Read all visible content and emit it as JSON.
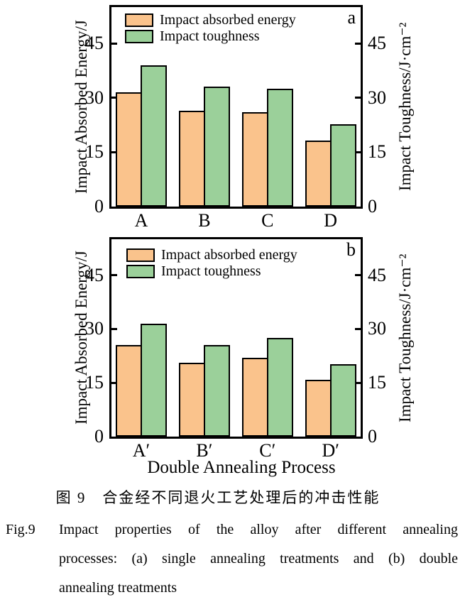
{
  "figure": {
    "caption_zh": "图 9　合金经不同退火工艺处理后的冲击性能",
    "caption_en": {
      "label": "Fig.9",
      "lines": [
        "Impact properties of the alloy after different annealing",
        "processes: (a) single annealing treatments and (b) double",
        "annealing treatments"
      ]
    }
  },
  "chart_data": [
    {
      "type": "bar",
      "panel_label": "a",
      "categories": [
        "A",
        "B",
        "C",
        "D"
      ],
      "series": [
        {
          "name": "Impact absorbed energy",
          "color": "#FAC38C",
          "values": [
            31.5,
            26.5,
            26.0,
            18.2
          ]
        },
        {
          "name": "Impact toughness",
          "color": "#9BD09A",
          "values": [
            39.0,
            33.0,
            32.5,
            22.8
          ]
        }
      ],
      "ylabel_left": "Impact Absorbed Energy/J",
      "ylabel_right": "Impact Toughness/J·cm⁻²",
      "xlabel": "",
      "yticks": [
        0,
        15,
        30,
        45
      ],
      "ylim": [
        0,
        55
      ],
      "grid": false,
      "legend_position": "upper-left",
      "bar_border_color": "#000000"
    },
    {
      "type": "bar",
      "panel_label": "b",
      "categories": [
        "A′",
        "B′",
        "C′",
        "D′"
      ],
      "series": [
        {
          "name": "Impact absorbed energy",
          "color": "#FAC38C",
          "values": [
            25.5,
            20.5,
            22.0,
            15.8
          ]
        },
        {
          "name": "Impact toughness",
          "color": "#9BD09A",
          "values": [
            31.5,
            25.5,
            27.5,
            20.2
          ]
        }
      ],
      "ylabel_left": "Impact Absorbed Energy/J",
      "ylabel_right": "Impact Toughness/J·cm⁻²",
      "xlabel": "Double Annealing Process",
      "yticks": [
        0,
        15,
        30,
        45
      ],
      "ylim": [
        0,
        55
      ],
      "grid": false,
      "legend_position": "upper-left",
      "bar_border_color": "#000000"
    }
  ]
}
